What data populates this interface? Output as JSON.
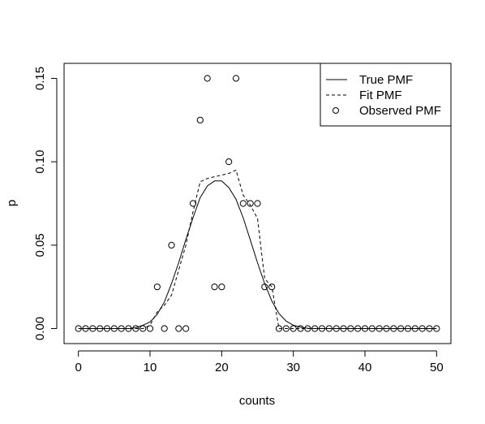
{
  "chart_data": {
    "type": "line",
    "title": "",
    "xlabel": "counts",
    "ylabel": "p",
    "xlim": [
      -2,
      52
    ],
    "ylim": [
      -0.009,
      0.159
    ],
    "x_ticks": [
      0,
      10,
      20,
      30,
      40,
      50
    ],
    "y_ticks": [
      0.0,
      0.05,
      0.1,
      0.15
    ],
    "x_tick_labels": [
      "0",
      "10",
      "20",
      "30",
      "40",
      "50"
    ],
    "y_tick_labels": [
      "0.00",
      "0.05",
      "0.10",
      "0.15"
    ],
    "grid": false,
    "legend_position": "top-right",
    "colors": {
      "series": "#000000",
      "background": "#ffffff"
    },
    "series": [
      {
        "name": "True PMF",
        "style": "solid",
        "x": [
          0,
          1,
          2,
          3,
          4,
          5,
          6,
          7,
          8,
          9,
          10,
          11,
          12,
          13,
          14,
          15,
          16,
          17,
          18,
          19,
          20,
          21,
          22,
          23,
          24,
          25,
          26,
          27,
          28,
          29,
          30,
          31,
          32,
          33,
          34,
          35,
          36,
          37,
          38,
          39,
          40,
          41,
          42,
          43,
          44,
          45,
          46,
          47,
          48,
          49,
          50
        ],
        "values": [
          0,
          0,
          0,
          0,
          0,
          0,
          0,
          0,
          0.0005,
          0.002,
          0.004,
          0.0085,
          0.016,
          0.027,
          0.0395,
          0.0535,
          0.0665,
          0.0785,
          0.0855,
          0.0885,
          0.0885,
          0.0845,
          0.0775,
          0.0665,
          0.053,
          0.0395,
          0.027,
          0.0165,
          0.009,
          0.0045,
          0.002,
          0.0008,
          0.0002,
          0,
          0,
          0,
          0,
          0,
          0,
          0,
          0,
          0,
          0,
          0,
          0,
          0,
          0,
          0,
          0,
          0,
          0
        ]
      },
      {
        "name": "Fit PMF",
        "style": "dashed",
        "x": [
          0,
          1,
          2,
          3,
          4,
          5,
          6,
          7,
          8,
          9,
          10,
          11,
          12,
          13,
          14,
          15,
          16,
          17,
          18,
          19,
          20,
          21,
          22,
          23,
          24,
          25,
          26,
          27,
          28,
          29,
          30,
          31,
          32,
          33,
          34,
          35,
          36,
          37,
          38,
          39,
          40,
          41,
          42,
          43,
          44,
          45,
          46,
          47,
          48,
          49,
          50
        ],
        "values": [
          0,
          0,
          0,
          0,
          0,
          0,
          0,
          0,
          0,
          0,
          0.002,
          0.01,
          0.014,
          0.02,
          0.035,
          0.05,
          0.07,
          0.088,
          0.09,
          0.091,
          0.092,
          0.093,
          0.095,
          0.08,
          0.074,
          0.066,
          0.03,
          0.025,
          0,
          0,
          0,
          0,
          0,
          0,
          0,
          0,
          0,
          0,
          0,
          0,
          0,
          0,
          0,
          0,
          0,
          0,
          0,
          0,
          0,
          0,
          0
        ]
      },
      {
        "name": "Observed PMF",
        "style": "points",
        "x": [
          0,
          1,
          2,
          3,
          4,
          5,
          6,
          7,
          8,
          9,
          10,
          11,
          12,
          13,
          14,
          15,
          16,
          17,
          18,
          19,
          20,
          21,
          22,
          23,
          24,
          25,
          26,
          27,
          28,
          29,
          30,
          31,
          32,
          33,
          34,
          35,
          36,
          37,
          38,
          39,
          40,
          41,
          42,
          43,
          44,
          45,
          46,
          47,
          48,
          49,
          50
        ],
        "values": [
          0,
          0,
          0,
          0,
          0,
          0,
          0,
          0,
          0,
          0,
          0,
          0.025,
          0,
          0.05,
          0,
          0,
          0.075,
          0.125,
          0.15,
          0.025,
          0.025,
          0.1,
          0.15,
          0.075,
          0.075,
          0.075,
          0.025,
          0.025,
          0,
          0,
          0,
          0,
          0,
          0,
          0,
          0,
          0,
          0,
          0,
          0,
          0,
          0,
          0,
          0,
          0,
          0,
          0,
          0,
          0,
          0,
          0
        ]
      }
    ]
  }
}
